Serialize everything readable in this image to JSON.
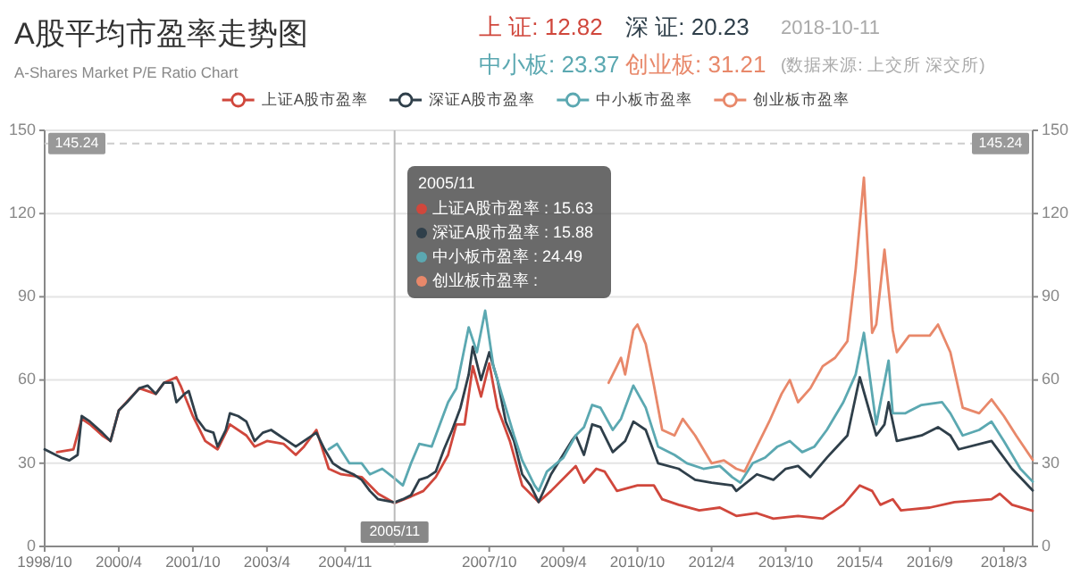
{
  "chart_data": {
    "type": "line",
    "title": "A股平均市盈率走势图",
    "subtitle": "A-Shares Market P/E Ratio Chart",
    "xlim": [
      "1998-10",
      "2018-10"
    ],
    "xticks": [
      {
        "value": "1998-10",
        "label": "1998/10"
      },
      {
        "value": "2000-04",
        "label": "2000/4"
      },
      {
        "value": "2001-10",
        "label": "2001/10"
      },
      {
        "value": "2003-04",
        "label": "2003/4"
      },
      {
        "value": "2004-11",
        "label": "2004/11"
      },
      {
        "value": "2007-10",
        "label": "2007/10"
      },
      {
        "value": "2009-04",
        "label": "2009/4"
      },
      {
        "value": "2010-10",
        "label": "2010/10"
      },
      {
        "value": "2012-04",
        "label": "2012/4"
      },
      {
        "value": "2013-10",
        "label": "2013/10"
      },
      {
        "value": "2015-04",
        "label": "2015/4"
      },
      {
        "value": "2016-09",
        "label": "2016/9"
      },
      {
        "value": "2018-03",
        "label": "2018/3"
      }
    ],
    "ylim": [
      0,
      150
    ],
    "yticks": [
      0,
      30,
      60,
      90,
      120,
      150
    ],
    "y2lim": [
      0,
      150
    ],
    "y2ticks": [
      0,
      30,
      60,
      90,
      120,
      150
    ],
    "grid": "y",
    "legend": "top",
    "series": [
      {
        "name": "上证A股市盈率",
        "color": "#d0473c",
        "x": [
          "1999-01",
          "1999-05",
          "1999-07",
          "1999-09",
          "1999-12",
          "2000-02",
          "2000-04",
          "2000-09",
          "2001-01",
          "2001-03",
          "2001-06",
          "2001-07",
          "2001-10",
          "2002-01",
          "2002-04",
          "2002-07",
          "2002-11",
          "2003-01",
          "2003-04",
          "2003-08",
          "2003-11",
          "2004-01",
          "2004-04",
          "2004-07",
          "2004-10",
          "2005-03",
          "2005-07",
          "2005-11",
          "2006-03",
          "2006-06",
          "2006-09",
          "2006-12",
          "2007-02",
          "2007-04",
          "2007-06",
          "2007-08",
          "2007-10",
          "2007-12",
          "2008-03",
          "2008-06",
          "2008-10",
          "2009-01",
          "2009-07",
          "2009-09",
          "2009-12",
          "2010-02",
          "2010-05",
          "2010-10",
          "2011-02",
          "2011-04",
          "2011-08",
          "2012-01",
          "2012-06",
          "2012-10",
          "2013-03",
          "2013-07",
          "2014-01",
          "2014-07",
          "2014-12",
          "2015-04",
          "2015-07",
          "2015-09",
          "2015-12",
          "2016-02",
          "2016-09",
          "2017-03",
          "2017-12",
          "2018-02",
          "2018-05",
          "2018-10"
        ],
        "values": [
          34,
          35,
          46,
          44,
          40,
          38,
          49,
          57,
          55,
          59,
          61,
          58,
          47,
          38,
          35,
          44,
          40,
          36,
          38,
          37,
          33,
          36,
          42,
          28,
          26,
          25,
          19,
          15.63,
          18,
          20,
          25,
          33,
          44,
          44,
          65,
          54,
          66,
          50,
          38,
          22,
          16,
          20,
          29,
          23,
          28,
          27,
          20,
          22,
          22,
          17,
          15,
          13,
          14,
          11,
          12,
          10,
          11,
          10,
          15,
          22,
          20,
          15,
          17,
          13,
          14,
          16,
          17,
          19,
          15,
          12.82
        ]
      },
      {
        "name": "深证A股市盈率",
        "color": "#2f3f4a",
        "x": [
          "1998-10",
          "1999-02",
          "1999-04",
          "1999-06",
          "1999-07",
          "1999-09",
          "1999-12",
          "2000-02",
          "2000-04",
          "2000-06",
          "2000-09",
          "2000-11",
          "2001-01",
          "2001-03",
          "2001-05",
          "2001-06",
          "2001-08",
          "2001-09",
          "2001-11",
          "2002-01",
          "2002-03",
          "2002-04",
          "2002-06",
          "2002-07",
          "2002-09",
          "2002-11",
          "2003-01",
          "2003-03",
          "2003-05",
          "2003-07",
          "2003-09",
          "2003-11",
          "2004-01",
          "2004-04",
          "2004-06",
          "2004-08",
          "2004-10",
          "2005-01",
          "2005-03",
          "2005-05",
          "2005-07",
          "2005-11",
          "2006-01",
          "2006-03",
          "2006-05",
          "2006-07",
          "2006-09",
          "2006-11",
          "2007-01",
          "2007-03",
          "2007-05",
          "2007-06",
          "2007-08",
          "2007-10",
          "2007-12",
          "2008-02",
          "2008-04",
          "2008-06",
          "2008-08",
          "2008-10",
          "2009-01",
          "2009-06",
          "2009-07",
          "2009-09",
          "2009-11",
          "2010-01",
          "2010-04",
          "2010-07",
          "2010-09",
          "2010-12",
          "2011-02",
          "2011-03",
          "2011-08",
          "2011-12",
          "2012-04",
          "2012-09",
          "2012-10",
          "2013-03",
          "2013-07",
          "2013-10",
          "2014-01",
          "2014-04",
          "2014-08",
          "2015-01",
          "2015-04",
          "2015-08",
          "2015-10",
          "2015-11",
          "2016-01",
          "2016-07",
          "2016-11",
          "2017-02",
          "2017-04",
          "2017-12",
          "2018-05",
          "2018-10"
        ],
        "values": [
          35,
          32,
          31,
          33,
          47,
          45,
          41,
          38,
          49,
          52,
          57,
          58,
          55,
          59,
          59,
          52,
          55,
          56,
          46,
          42,
          41,
          36,
          42,
          48,
          47,
          45,
          38,
          41,
          42,
          40,
          38,
          36,
          38,
          41,
          35,
          30,
          28,
          26,
          24,
          20,
          17,
          15.88,
          17,
          18.5,
          24,
          25,
          27,
          35,
          42,
          50,
          62,
          72,
          60,
          70,
          60,
          45,
          38,
          26,
          22,
          16,
          26,
          38,
          40,
          33,
          44,
          43,
          34,
          38,
          45,
          42,
          34,
          30,
          28,
          24,
          23,
          22,
          20,
          26,
          24,
          28,
          29,
          25,
          32,
          40,
          61,
          40,
          44,
          52,
          38,
          40,
          43,
          40,
          35,
          38,
          28,
          20.23
        ]
      },
      {
        "name": "中小板市盈率",
        "color": "#5ba8b1",
        "x": [
          "2004-07",
          "2004-09",
          "2004-12",
          "2005-03",
          "2005-05",
          "2005-08",
          "2005-11",
          "2006-01",
          "2006-03",
          "2006-05",
          "2006-08",
          "2006-10",
          "2006-12",
          "2007-02",
          "2007-05",
          "2007-07",
          "2007-09",
          "2007-11",
          "2008-01",
          "2008-04",
          "2008-06",
          "2008-09",
          "2008-10",
          "2008-12",
          "2009-04",
          "2009-07",
          "2009-09",
          "2009-11",
          "2010-01",
          "2010-04",
          "2010-06",
          "2010-09",
          "2010-12",
          "2011-03",
          "2011-07",
          "2011-10",
          "2012-02",
          "2012-06",
          "2012-09",
          "2012-11",
          "2013-02",
          "2013-05",
          "2013-08",
          "2013-11",
          "2014-02",
          "2014-05",
          "2014-08",
          "2014-12",
          "2015-03",
          "2015-05",
          "2015-07",
          "2015-08",
          "2015-11",
          "2015-12",
          "2016-03",
          "2016-07",
          "2016-12",
          "2017-02",
          "2017-05",
          "2017-09",
          "2017-12",
          "2018-03",
          "2018-07",
          "2018-10"
        ],
        "values": [
          35,
          37,
          30,
          30,
          26,
          28,
          24.49,
          22,
          30,
          37,
          36,
          44,
          52,
          57,
          79,
          70,
          85,
          65,
          55,
          40,
          31,
          22,
          20,
          27,
          32,
          40,
          43,
          51,
          50,
          42,
          46,
          58,
          50,
          36,
          33,
          30,
          28,
          29,
          25,
          23,
          30,
          32,
          36,
          38,
          34,
          36,
          42,
          52,
          62,
          77,
          55,
          44,
          67,
          48,
          48,
          51,
          52,
          48,
          40,
          42,
          45,
          38,
          28,
          23.37
        ]
      },
      {
        "name": "创业板市盈率",
        "color": "#e8886a",
        "x": [
          "2010-03",
          "2010-05",
          "2010-06",
          "2010-07",
          "2010-09",
          "2010-10",
          "2010-12",
          "2011-02",
          "2011-04",
          "2011-07",
          "2011-09",
          "2011-12",
          "2012-02",
          "2012-04",
          "2012-07",
          "2012-10",
          "2012-12",
          "2013-03",
          "2013-06",
          "2013-09",
          "2013-11",
          "2014-01",
          "2014-04",
          "2014-07",
          "2014-10",
          "2015-01",
          "2015-03",
          "2015-05",
          "2015-07",
          "2015-08",
          "2015-10",
          "2015-12",
          "2016-01",
          "2016-04",
          "2016-09",
          "2016-11",
          "2017-02",
          "2017-05",
          "2017-09",
          "2017-12",
          "2018-03",
          "2018-06",
          "2018-10"
        ],
        "values": [
          59,
          65,
          68,
          62,
          78,
          80,
          73,
          58,
          42,
          40,
          46,
          40,
          35,
          30,
          31,
          28,
          27,
          36,
          45,
          55,
          60,
          52,
          57,
          65,
          68,
          74,
          100,
          133,
          77,
          80,
          107,
          78,
          70,
          76,
          76,
          80,
          70,
          50,
          48,
          53,
          47,
          40,
          31.21
        ]
      }
    ],
    "ref_lines": [
      {
        "axis": "y",
        "value": 145.24,
        "label": "145.24",
        "color": "#cccccc",
        "line_style": "dashed"
      },
      {
        "axis": "x",
        "value": "2005-11",
        "label": "2005/11",
        "color": "#bbbbbb"
      }
    ],
    "annotations": [
      "上 证: 12.82",
      "深 证: 20.23",
      "2018-10-11",
      "中小板: 23.37",
      "创业板: 31.21",
      "(数据来源: 上交所 深交所)",
      "2005/11",
      "上证A股市盈率 : 15.63",
      "深证A股市盈率 : 15.88",
      "中小板市盈率 : 24.49",
      "创业板市盈率 :"
    ]
  }
}
